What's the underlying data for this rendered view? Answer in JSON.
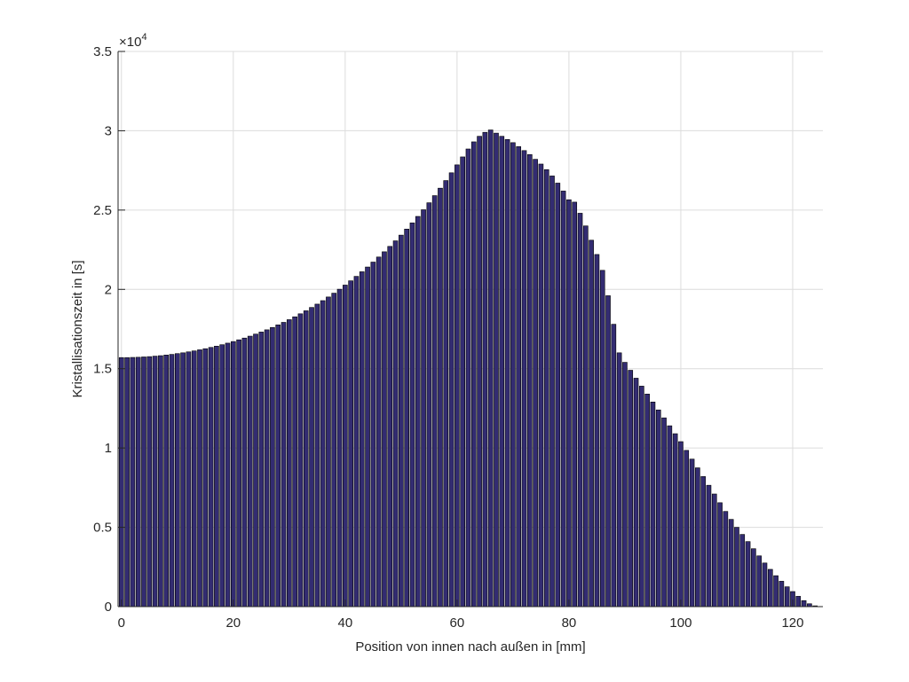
{
  "chart_data": {
    "type": "bar",
    "xlabel": "Position von innen nach außen in [mm]",
    "ylabel": "Kristallisationszeit in [s]",
    "y_exponent": {
      "base": "×10",
      "power": "4"
    },
    "color": "#332c72",
    "edgecolor": "#000000",
    "grid": true,
    "bar_width": 0.8,
    "xlim": [
      -0.6,
      125.4
    ],
    "xticks": [
      0,
      20,
      40,
      60,
      80,
      100,
      120
    ],
    "ylim": [
      0,
      35000
    ],
    "yticks": [
      {
        "value": 0,
        "label": "0"
      },
      {
        "value": 5000,
        "label": "0.5"
      },
      {
        "value": 10000,
        "label": "1"
      },
      {
        "value": 15000,
        "label": "1.5"
      },
      {
        "value": 20000,
        "label": "2"
      },
      {
        "value": 25000,
        "label": "2.5"
      },
      {
        "value": 30000,
        "label": "3"
      },
      {
        "value": 35000,
        "label": "3.5"
      }
    ],
    "x": [
      0,
      1,
      2,
      3,
      4,
      5,
      6,
      7,
      8,
      9,
      10,
      11,
      12,
      13,
      14,
      15,
      16,
      17,
      18,
      19,
      20,
      21,
      22,
      23,
      24,
      25,
      26,
      27,
      28,
      29,
      30,
      31,
      32,
      33,
      34,
      35,
      36,
      37,
      38,
      39,
      40,
      41,
      42,
      43,
      44,
      45,
      46,
      47,
      48,
      49,
      50,
      51,
      52,
      53,
      54,
      55,
      56,
      57,
      58,
      59,
      60,
      61,
      62,
      63,
      64,
      65,
      66,
      67,
      68,
      69,
      70,
      71,
      72,
      73,
      74,
      75,
      76,
      77,
      78,
      79,
      80,
      81,
      82,
      83,
      84,
      85,
      86,
      87,
      88,
      89,
      90,
      91,
      92,
      93,
      94,
      95,
      96,
      97,
      98,
      99,
      100,
      101,
      102,
      103,
      104,
      105,
      106,
      107,
      108,
      109,
      110,
      111,
      112,
      113,
      114,
      115,
      116,
      117,
      118,
      119,
      120,
      121,
      122,
      123,
      124
    ],
    "values": [
      15700,
      15700,
      15710,
      15720,
      15740,
      15760,
      15790,
      15820,
      15860,
      15900,
      15950,
      16000,
      16060,
      16120,
      16190,
      16260,
      16340,
      16420,
      16510,
      16610,
      16710,
      16820,
      16930,
      17050,
      17180,
      17310,
      17450,
      17600,
      17760,
      17920,
      18090,
      18270,
      18460,
      18650,
      18860,
      19070,
      19290,
      19520,
      19760,
      20010,
      20270,
      20540,
      20820,
      21110,
      21410,
      21720,
      22040,
      22370,
      22710,
      23060,
      23420,
      23800,
      24190,
      24600,
      25020,
      25460,
      25910,
      26380,
      26860,
      27350,
      27850,
      28350,
      28850,
      29300,
      29650,
      29900,
      30050,
      29850,
      29650,
      29450,
      29250,
      29000,
      28750,
      28500,
      28200,
      27900,
      27550,
      27150,
      26700,
      26200,
      25650,
      25500,
      24800,
      24000,
      23100,
      22200,
      21200,
      19600,
      17800,
      16000,
      15400,
      14900,
      14400,
      13900,
      13400,
      12900,
      12400,
      11900,
      11400,
      10900,
      10400,
      9850,
      9300,
      8750,
      8200,
      7650,
      7100,
      6550,
      6000,
      5500,
      5000,
      4550,
      4100,
      3650,
      3200,
      2750,
      2350,
      1950,
      1600,
      1250,
      950,
      650,
      380,
      180,
      50
    ]
  }
}
